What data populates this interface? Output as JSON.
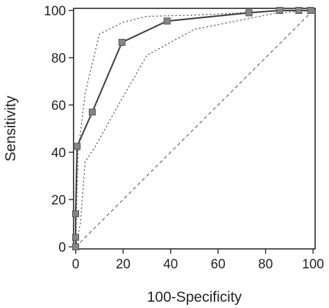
{
  "chart_data": {
    "type": "line",
    "title": "",
    "xlabel": "100-Specificity",
    "ylabel": "Sensitivity",
    "xlim": [
      0,
      100
    ],
    "ylim": [
      0,
      100
    ],
    "x_ticks": [
      "0",
      "20",
      "40",
      "60",
      "80",
      "100"
    ],
    "y_ticks": [
      "0",
      "20",
      "40",
      "60",
      "80",
      "100"
    ],
    "grid": false,
    "legend": "none",
    "series": [
      {
        "role": "roc-curve",
        "style": "solid",
        "markers": "square",
        "x": [
          0,
          0,
          0,
          0.6,
          7,
          19.5,
          38.5,
          73,
          86,
          94,
          99
        ],
        "y": [
          0,
          4,
          14,
          42.5,
          57,
          86.5,
          95.5,
          99,
          100,
          100,
          100
        ]
      },
      {
        "role": "upper-confidence-bound",
        "style": "dotted",
        "x": [
          0,
          1,
          4,
          10,
          20,
          30,
          50,
          70,
          85,
          100
        ],
        "y": [
          0,
          40,
          65,
          90,
          95,
          97.5,
          98,
          99,
          100,
          100
        ]
      },
      {
        "role": "lower-confidence-bound",
        "style": "dotted",
        "x": [
          0,
          2,
          4,
          8,
          18,
          30,
          50,
          70,
          85,
          100
        ],
        "y": [
          0,
          10,
          36,
          42,
          60,
          81,
          92,
          96,
          99,
          100
        ]
      },
      {
        "role": "reference-diagonal",
        "style": "dashed",
        "x": [
          0,
          100
        ],
        "y": [
          0,
          100
        ]
      }
    ],
    "colors": {
      "curve": "#444444",
      "marker_fill": "#858585",
      "marker_stroke": "#555555",
      "confidence": "#555555",
      "diagonal": "#555555",
      "axis": "#222222",
      "text": "#222222"
    }
  }
}
